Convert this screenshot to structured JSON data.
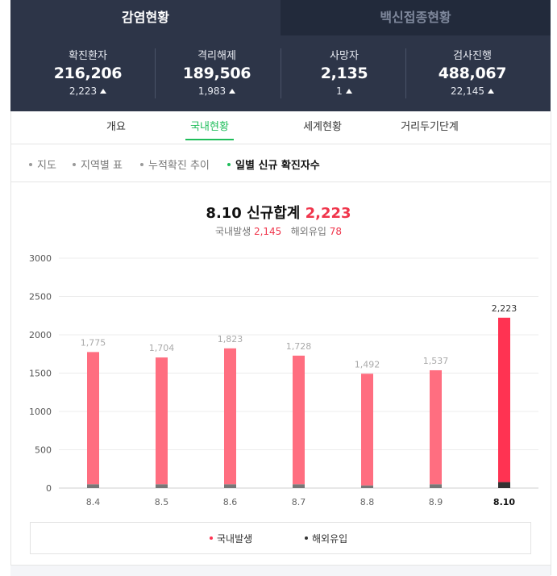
{
  "tabs": [
    {
      "label": "감염현황"
    },
    {
      "label": "백신접종현황"
    }
  ],
  "stats": [
    {
      "label": "확진환자",
      "value": "216,206",
      "delta": "2,223"
    },
    {
      "label": "격리해제",
      "value": "189,506",
      "delta": "1,983"
    },
    {
      "label": "사망자",
      "value": "2,135",
      "delta": "1"
    },
    {
      "label": "검사진행",
      "value": "488,067",
      "delta": "22,145"
    }
  ],
  "subtabs": [
    {
      "label": "개요"
    },
    {
      "label": "국내현황"
    },
    {
      "label": "세계현황"
    },
    {
      "label": "거리두기단계"
    }
  ],
  "chips": [
    {
      "label": "지도"
    },
    {
      "label": "지역별 표"
    },
    {
      "label": "누적확진 추이"
    },
    {
      "label": "일별 신규 확진자수"
    }
  ],
  "summary": {
    "title": "8.10 신규합계",
    "total": "2,223",
    "domestic_label": "국내발생",
    "domestic_value": "2,145",
    "overseas_label": "해외유입",
    "overseas_value": "78"
  },
  "colors": {
    "domestic": "#ff6e80",
    "domestic_today": "#ff3352",
    "overseas": "#777777",
    "overseas_today": "#333333",
    "accent_green": "#1ebd5a",
    "header_bg": "#2d3548"
  },
  "chart_data": {
    "type": "bar",
    "stacked": true,
    "categories": [
      "8.4",
      "8.5",
      "8.6",
      "8.7",
      "8.8",
      "8.9",
      "8.10"
    ],
    "series": [
      {
        "name": "국내발생",
        "values": [
          1725,
          1654,
          1773,
          1678,
          1457,
          1487,
          2145
        ]
      },
      {
        "name": "해외유입",
        "values": [
          50,
          50,
          50,
          50,
          35,
          50,
          78
        ]
      }
    ],
    "totals": [
      "1,775",
      "1,704",
      "1,823",
      "1,728",
      "1,492",
      "1,537",
      "2,223"
    ],
    "yticks": [
      "0",
      "500",
      "1000",
      "1500",
      "2000",
      "2500",
      "3000"
    ],
    "ylim": [
      0,
      3000
    ],
    "grid": true,
    "legend": "bottom"
  }
}
